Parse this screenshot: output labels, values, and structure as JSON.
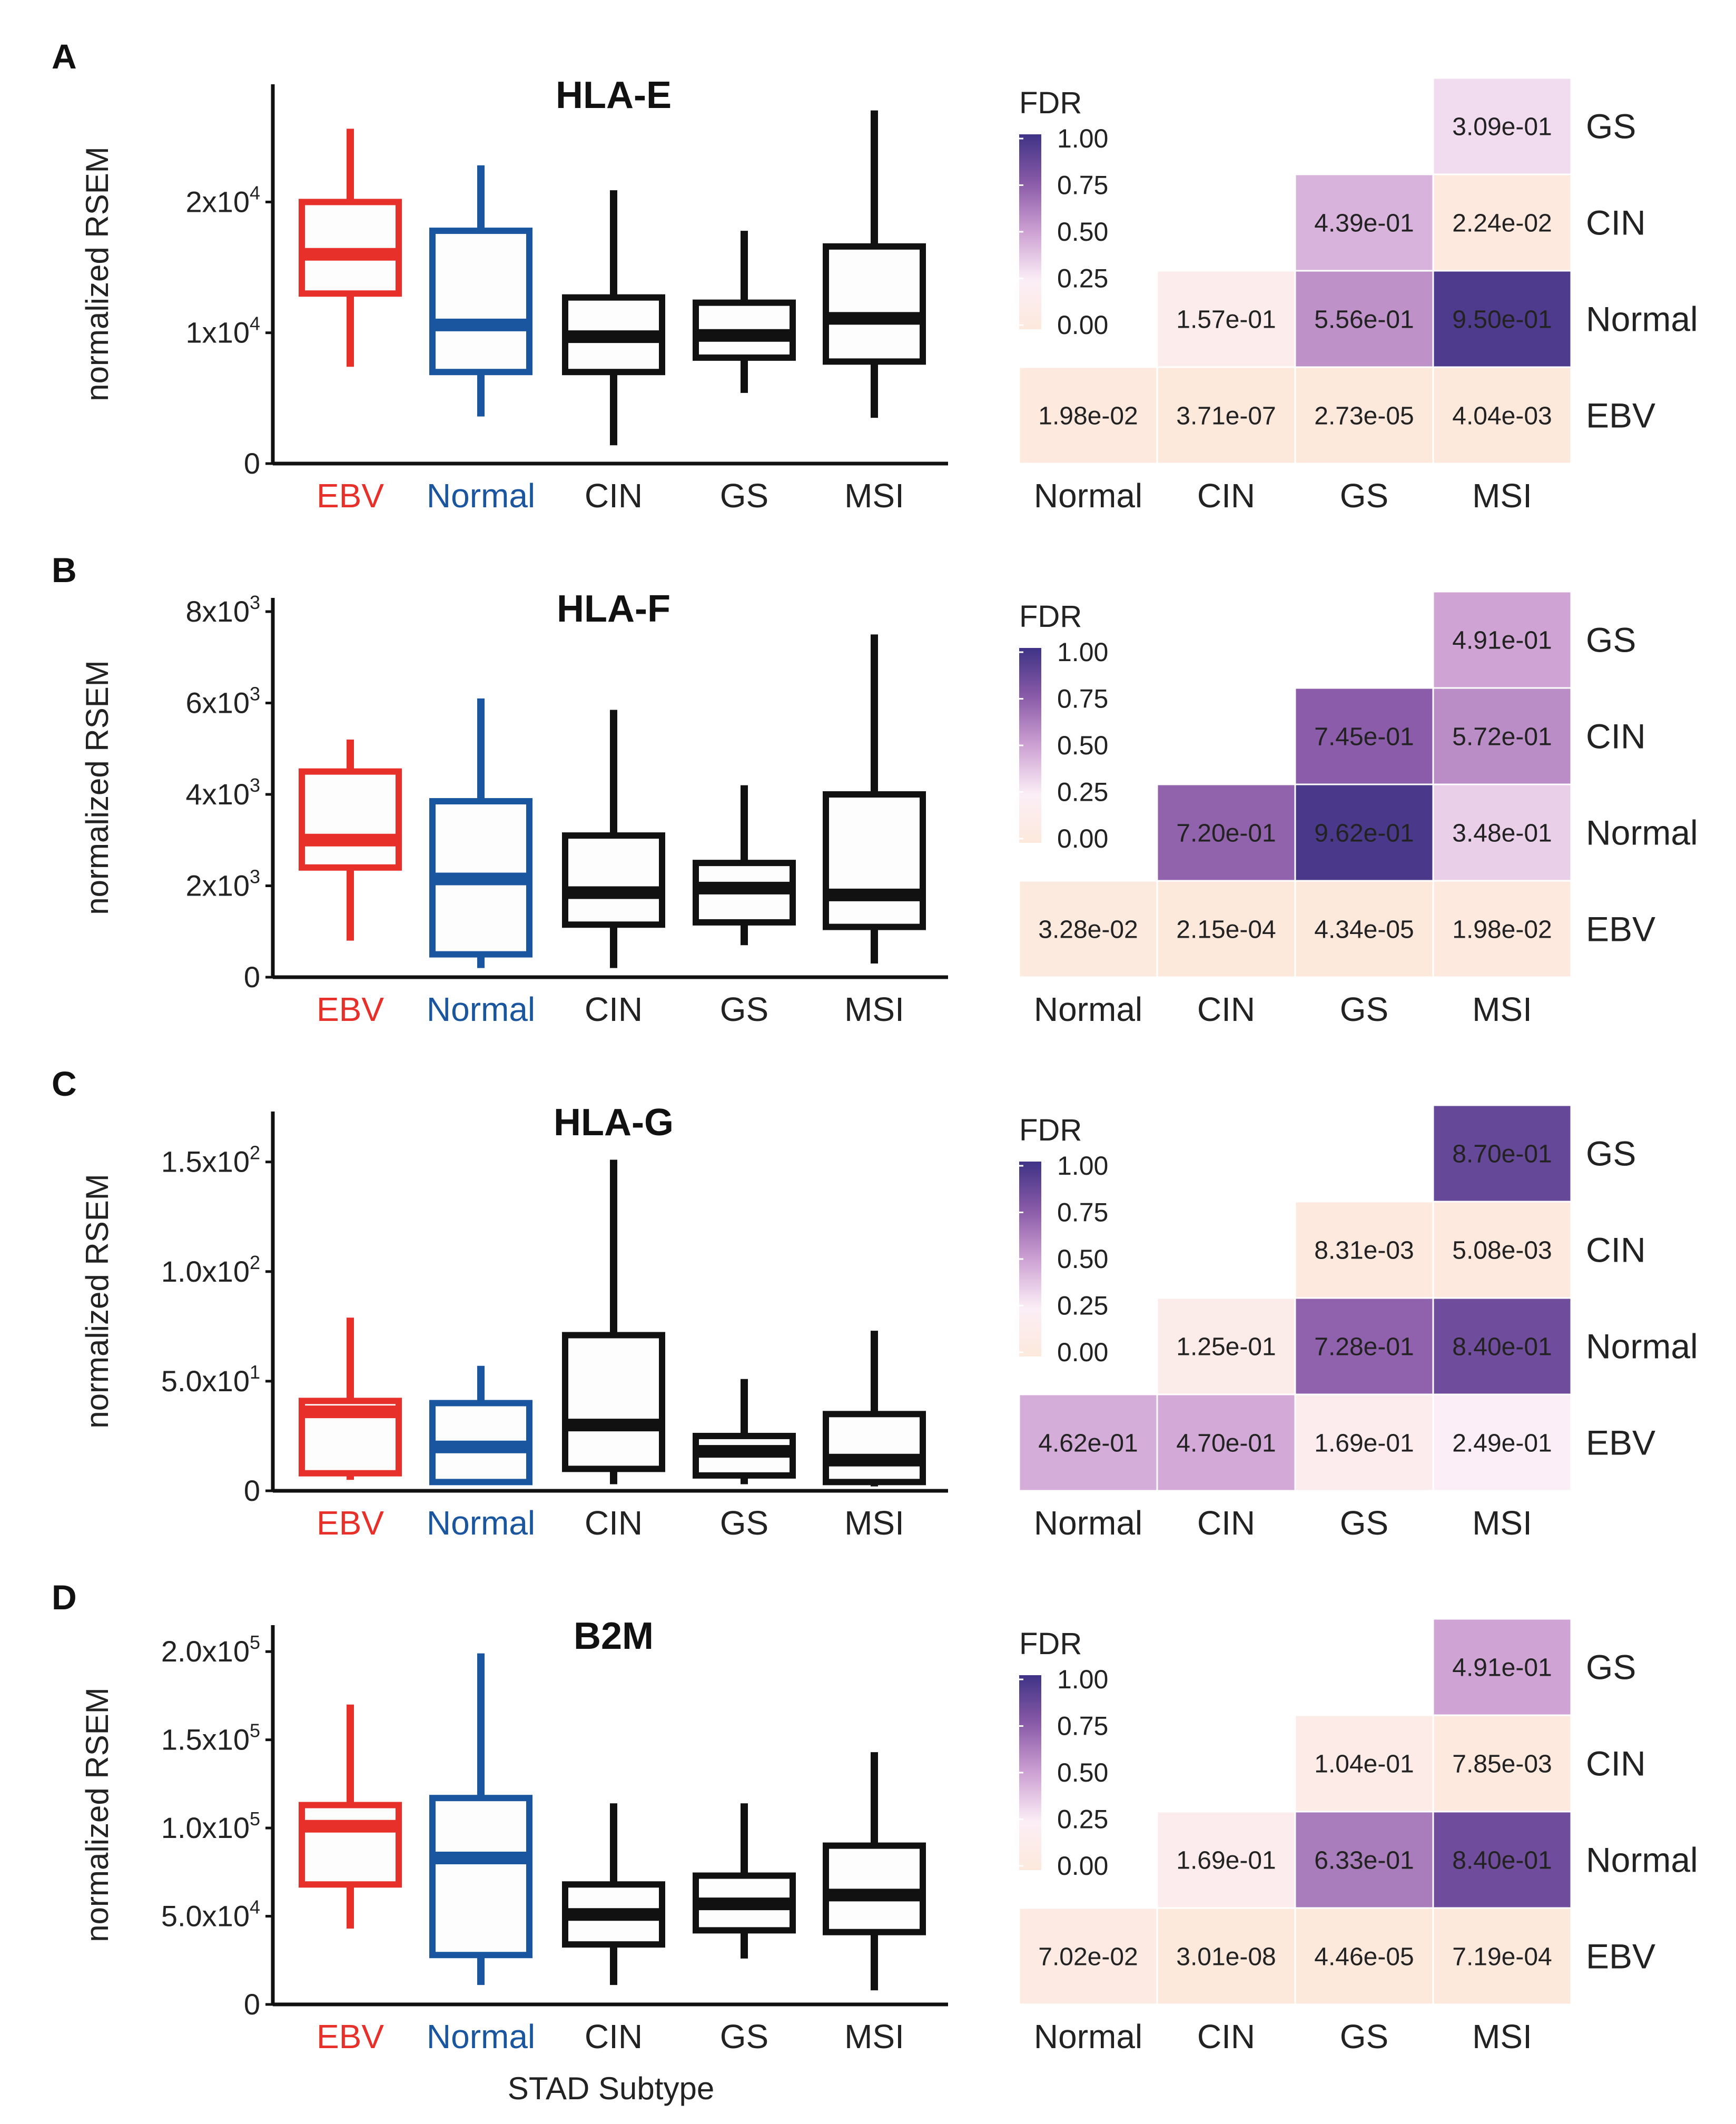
{
  "figure": {
    "x_axis_title": "STAD Subtype"
  },
  "colors": {
    "EBV": "#e8302a",
    "Normal": "#1a56a0",
    "other": "#111111",
    "heat_low": "#fde9dc",
    "heat_mid": "#fbeef6",
    "heat_high": "#3f3386"
  },
  "legend": {
    "title": "FDR",
    "ticks": [
      "1.00",
      "0.75",
      "0.50",
      "0.25",
      "0.00"
    ]
  },
  "chart_data": [
    {
      "type": "box",
      "panel": "A",
      "title": "HLA-E",
      "ylabel": "normalized RSEM",
      "categories": [
        "EBV",
        "Normal",
        "CIN",
        "GS",
        "MSI"
      ],
      "ylim": [
        0,
        29000
      ],
      "yticks": [
        {
          "value": 0,
          "base": "0",
          "exp": ""
        },
        {
          "value": 10000,
          "base": "1x10",
          "exp": "4"
        },
        {
          "value": 20000,
          "base": "2x10",
          "exp": "4"
        }
      ],
      "boxes": [
        {
          "min": 7400,
          "q1": 13000,
          "median": 16000,
          "q3": 20000,
          "max": 25600
        },
        {
          "min": 3600,
          "q1": 7000,
          "median": 10600,
          "q3": 17800,
          "max": 22800
        },
        {
          "min": 1400,
          "q1": 7000,
          "median": 9700,
          "q3": 12700,
          "max": 20900
        },
        {
          "min": 5400,
          "q1": 8100,
          "median": 9800,
          "q3": 12300,
          "max": 17800
        },
        {
          "min": 3500,
          "q1": 7800,
          "median": 11100,
          "q3": 16600,
          "max": 27000
        }
      ],
      "heatmap": {
        "rows": [
          "GS",
          "CIN",
          "Normal",
          "EBV"
        ],
        "cols": [
          "Normal",
          "CIN",
          "GS",
          "MSI"
        ],
        "cells": [
          [
            null,
            null,
            null,
            {
              "value": 0.309,
              "label": "3.09e-01"
            }
          ],
          [
            null,
            null,
            {
              "value": 0.439,
              "label": "4.39e-01"
            },
            {
              "value": 0.0224,
              "label": "2.24e-02"
            }
          ],
          [
            null,
            {
              "value": 0.157,
              "label": "1.57e-01"
            },
            {
              "value": 0.556,
              "label": "5.56e-01"
            },
            {
              "value": 0.95,
              "label": "9.50e-01"
            }
          ],
          [
            {
              "value": 0.0198,
              "label": "1.98e-02"
            },
            {
              "value": 3.71e-07,
              "label": "3.71e-07"
            },
            {
              "value": 2.73e-05,
              "label": "2.73e-05"
            },
            {
              "value": 0.00404,
              "label": "4.04e-03"
            }
          ]
        ]
      }
    },
    {
      "type": "box",
      "panel": "B",
      "title": "HLA-F",
      "ylabel": "normalized RSEM",
      "categories": [
        "EBV",
        "Normal",
        "CIN",
        "GS",
        "MSI"
      ],
      "ylim": [
        0,
        8300
      ],
      "yticks": [
        {
          "value": 0,
          "base": "0",
          "exp": ""
        },
        {
          "value": 2000,
          "base": "2x10",
          "exp": "3"
        },
        {
          "value": 4000,
          "base": "4x10",
          "exp": "3"
        },
        {
          "value": 6000,
          "base": "6x10",
          "exp": "3"
        },
        {
          "value": 8000,
          "base": "8x10",
          "exp": "3"
        }
      ],
      "boxes": [
        {
          "min": 800,
          "q1": 2400,
          "median": 3000,
          "q3": 4500,
          "max": 5200
        },
        {
          "min": 200,
          "q1": 500,
          "median": 2150,
          "q3": 3850,
          "max": 6100
        },
        {
          "min": 200,
          "q1": 1150,
          "median": 1850,
          "q3": 3100,
          "max": 5850
        },
        {
          "min": 700,
          "q1": 1200,
          "median": 1950,
          "q3": 2500,
          "max": 4200
        },
        {
          "min": 300,
          "q1": 1100,
          "median": 1800,
          "q3": 4000,
          "max": 7500
        }
      ],
      "heatmap": {
        "rows": [
          "GS",
          "CIN",
          "Normal",
          "EBV"
        ],
        "cols": [
          "Normal",
          "CIN",
          "GS",
          "MSI"
        ],
        "cells": [
          [
            null,
            null,
            null,
            {
              "value": 0.491,
              "label": "4.91e-01"
            }
          ],
          [
            null,
            null,
            {
              "value": 0.745,
              "label": "7.45e-01"
            },
            {
              "value": 0.572,
              "label": "5.72e-01"
            }
          ],
          [
            null,
            {
              "value": 0.72,
              "label": "7.20e-01"
            },
            {
              "value": 0.962,
              "label": "9.62e-01"
            },
            {
              "value": 0.348,
              "label": "3.48e-01"
            }
          ],
          [
            {
              "value": 0.0328,
              "label": "3.28e-02"
            },
            {
              "value": 0.000215,
              "label": "2.15e-04"
            },
            {
              "value": 4.34e-05,
              "label": "4.34e-05"
            },
            {
              "value": 0.0198,
              "label": "1.98e-02"
            }
          ]
        ]
      }
    },
    {
      "type": "box",
      "panel": "C",
      "title": "HLA-G",
      "ylabel": "normalized RSEM",
      "categories": [
        "EBV",
        "Normal",
        "CIN",
        "GS",
        "MSI"
      ],
      "ylim": [
        0,
        173
      ],
      "yticks": [
        {
          "value": 0,
          "base": "0",
          "exp": ""
        },
        {
          "value": 50,
          "base": "5.0x10",
          "exp": "1"
        },
        {
          "value": 100,
          "base": "1.0x10",
          "exp": "2"
        },
        {
          "value": 150,
          "base": "1.5x10",
          "exp": "2"
        }
      ],
      "boxes": [
        {
          "min": 5,
          "q1": 8,
          "median": 36,
          "q3": 41,
          "max": 79
        },
        {
          "min": 3,
          "q1": 4,
          "median": 20,
          "q3": 40,
          "max": 57
        },
        {
          "min": 3,
          "q1": 10,
          "median": 30,
          "q3": 71,
          "max": 151
        },
        {
          "min": 3,
          "q1": 7,
          "median": 18,
          "q3": 25,
          "max": 51
        },
        {
          "min": 2,
          "q1": 4,
          "median": 14,
          "q3": 35,
          "max": 73
        }
      ],
      "heatmap": {
        "rows": [
          "GS",
          "CIN",
          "Normal",
          "EBV"
        ],
        "cols": [
          "Normal",
          "CIN",
          "GS",
          "MSI"
        ],
        "cells": [
          [
            null,
            null,
            null,
            {
              "value": 0.87,
              "label": "8.70e-01"
            }
          ],
          [
            null,
            null,
            {
              "value": 0.00831,
              "label": "8.31e-03"
            },
            {
              "value": 0.00508,
              "label": "5.08e-03"
            }
          ],
          [
            null,
            {
              "value": 0.125,
              "label": "1.25e-01"
            },
            {
              "value": 0.728,
              "label": "7.28e-01"
            },
            {
              "value": 0.84,
              "label": "8.40e-01"
            }
          ],
          [
            {
              "value": 0.462,
              "label": "4.62e-01"
            },
            {
              "value": 0.47,
              "label": "4.70e-01"
            },
            {
              "value": 0.169,
              "label": "1.69e-01"
            },
            {
              "value": 0.249,
              "label": "2.49e-01"
            }
          ]
        ]
      }
    },
    {
      "type": "box",
      "panel": "D",
      "title": "B2M",
      "ylabel": "normalized RSEM",
      "categories": [
        "EBV",
        "Normal",
        "CIN",
        "GS",
        "MSI"
      ],
      "ylim": [
        0,
        215000
      ],
      "yticks": [
        {
          "value": 0,
          "base": "0",
          "exp": ""
        },
        {
          "value": 50000,
          "base": "5.0x10",
          "exp": "4"
        },
        {
          "value": 100000,
          "base": "1.0x10",
          "exp": "5"
        },
        {
          "value": 150000,
          "base": "1.5x10",
          "exp": "5"
        },
        {
          "value": 200000,
          "base": "2.0x10",
          "exp": "5"
        }
      ],
      "boxes": [
        {
          "min": 43000,
          "q1": 68000,
          "median": 101000,
          "q3": 113000,
          "max": 170000
        },
        {
          "min": 11000,
          "q1": 28000,
          "median": 83000,
          "q3": 117000,
          "max": 199000
        },
        {
          "min": 11000,
          "q1": 34000,
          "median": 51000,
          "q3": 68000,
          "max": 114000
        },
        {
          "min": 26000,
          "q1": 42000,
          "median": 57000,
          "q3": 73000,
          "max": 114000
        },
        {
          "min": 8000,
          "q1": 41000,
          "median": 62000,
          "q3": 90000,
          "max": 143000
        }
      ],
      "heatmap": {
        "rows": [
          "GS",
          "CIN",
          "Normal",
          "EBV"
        ],
        "cols": [
          "Normal",
          "CIN",
          "GS",
          "MSI"
        ],
        "cells": [
          [
            null,
            null,
            null,
            {
              "value": 0.491,
              "label": "4.91e-01"
            }
          ],
          [
            null,
            null,
            {
              "value": 0.104,
              "label": "1.04e-01"
            },
            {
              "value": 0.00785,
              "label": "7.85e-03"
            }
          ],
          [
            null,
            {
              "value": 0.169,
              "label": "1.69e-01"
            },
            {
              "value": 0.633,
              "label": "6.33e-01"
            },
            {
              "value": 0.84,
              "label": "8.40e-01"
            }
          ],
          [
            {
              "value": 0.0702,
              "label": "7.02e-02"
            },
            {
              "value": 3.01e-08,
              "label": "3.01e-08"
            },
            {
              "value": 4.46e-05,
              "label": "4.46e-05"
            },
            {
              "value": 0.000719,
              "label": "7.19e-04"
            }
          ]
        ]
      }
    }
  ]
}
